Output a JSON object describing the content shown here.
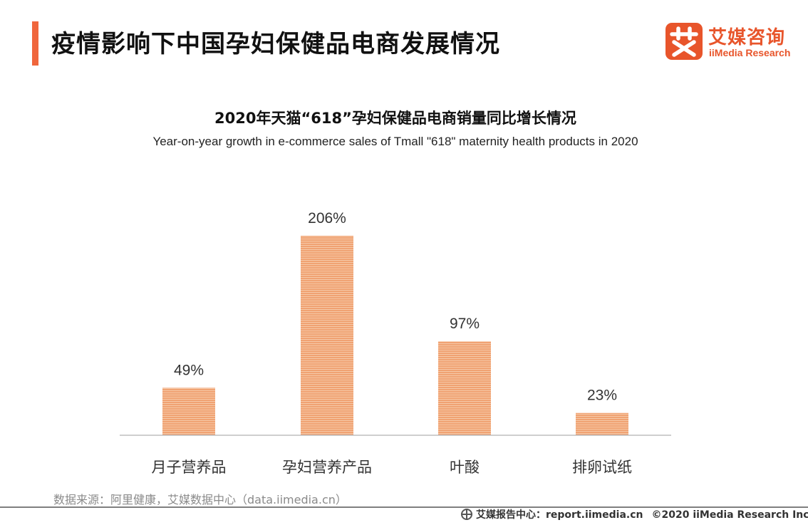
{
  "header": {
    "title": "疫情影响下中国孕妇保健品电商发展情况",
    "accent_color": "#f0663c"
  },
  "logo": {
    "mark_glyph": "艾",
    "name_cn": "艾媒咨询",
    "name_en": "iiMedia Research",
    "color": "#e8552b"
  },
  "chart_data": {
    "type": "bar",
    "title": "2020年天猫“618”孕妇保健品电商销量同比增长情况",
    "subtitle": "Year-on-year growth in e-commerce sales of Tmall \"618\" maternity health products in 2020",
    "categories": [
      "月子营养品",
      "孕妇营养产品",
      "叶酸",
      "排卵试纸"
    ],
    "values": [
      49,
      206,
      97,
      23
    ],
    "value_labels": [
      "49%",
      "206%",
      "97%",
      "23%"
    ],
    "unit": "%",
    "ylim": [
      0,
      206
    ],
    "grid": false,
    "bar_color": "#f0a272",
    "bar_stripe_color": "#f6c9a8"
  },
  "source": {
    "text": "数据来源：阿里健康，艾媒数据中心（data.iimedia.cn）"
  },
  "footer": {
    "report_label": "艾媒报告中心：",
    "report_url": "report.iimedia.cn",
    "copyright": "©2020  iiMedia Research  Inc"
  }
}
